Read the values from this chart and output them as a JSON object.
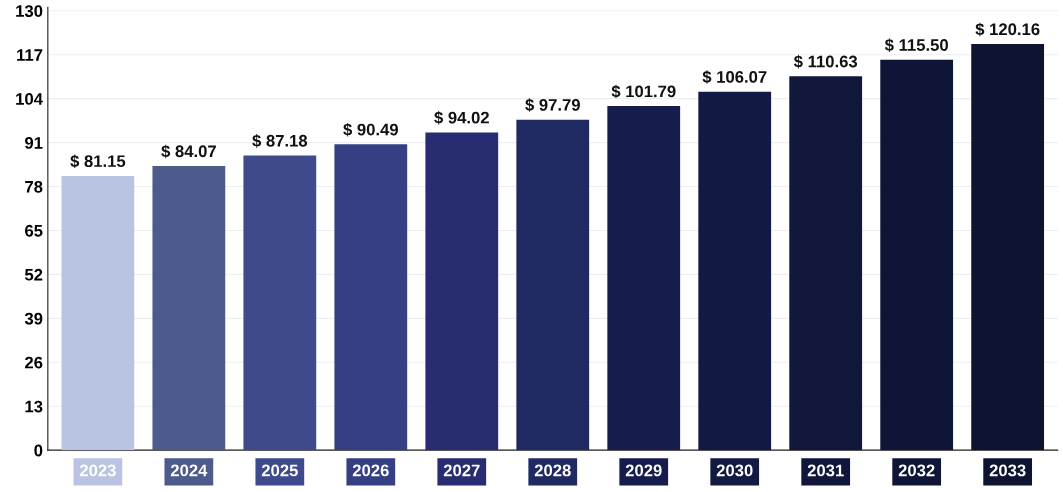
{
  "chart_data": {
    "type": "bar",
    "categories": [
      "2023",
      "2024",
      "2025",
      "2026",
      "2027",
      "2028",
      "2029",
      "2030",
      "2031",
      "2032",
      "2033"
    ],
    "values": [
      81.15,
      84.07,
      87.18,
      90.49,
      94.02,
      97.79,
      101.79,
      106.07,
      110.63,
      115.5,
      120.16
    ],
    "value_labels": [
      "$ 81.15",
      "$ 84.07",
      "$ 87.18",
      "$ 90.49",
      "$ 94.02",
      "$ 97.79",
      "$ 101.79",
      "$ 106.07",
      "$ 110.63",
      "$ 115.50",
      "$ 120.16"
    ],
    "colors": [
      "#b9c3e2",
      "#4d5a8c",
      "#3f4a8c",
      "#363f84",
      "#282d72",
      "#1f2a62",
      "#161d4c",
      "#121942",
      "#10173b",
      "#0f1537",
      "#0d1331"
    ],
    "ylim": [
      0,
      131
    ],
    "yticks": [
      0,
      13,
      26,
      39,
      52,
      65,
      78,
      91,
      104,
      117,
      130
    ],
    "grid": "y"
  }
}
